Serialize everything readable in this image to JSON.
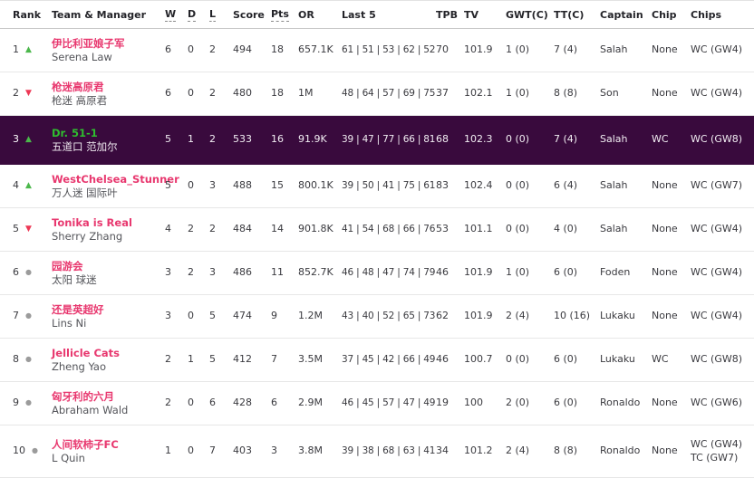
{
  "colors": {
    "highlight_bg": "#390a3d",
    "team_pink": "#e8386f",
    "highlight_team_green": "#2fbe2f",
    "up_arrow_green": "#4bb74b",
    "down_arrow_red": "#ed3855",
    "no_move_gray": "#9b9b9b"
  },
  "icons": {
    "up": "▲",
    "down": "▼",
    "same": "●"
  },
  "table": {
    "columns": [
      {
        "key": "rank",
        "label": "Rank",
        "underline": false
      },
      {
        "key": "team",
        "label": "Team & Manager",
        "underline": false
      },
      {
        "key": "w",
        "label": "W",
        "underline": true
      },
      {
        "key": "d",
        "label": "D",
        "underline": true
      },
      {
        "key": "l",
        "label": "L",
        "underline": true
      },
      {
        "key": "score",
        "label": "Score",
        "underline": false
      },
      {
        "key": "pts",
        "label": "Pts",
        "underline": true
      },
      {
        "key": "or",
        "label": "OR",
        "underline": false
      },
      {
        "key": "last5",
        "label": "Last 5",
        "underline": false
      },
      {
        "key": "tpb",
        "label": "TPB",
        "underline": false
      },
      {
        "key": "tv",
        "label": "TV",
        "underline": false
      },
      {
        "key": "gwt",
        "label": "GWT(C)",
        "underline": false
      },
      {
        "key": "tt",
        "label": "TT(C)",
        "underline": false
      },
      {
        "key": "captain",
        "label": "Captain",
        "underline": false
      },
      {
        "key": "chip",
        "label": "Chip",
        "underline": false
      },
      {
        "key": "chips",
        "label": "Chips",
        "underline": false
      }
    ],
    "rows": [
      {
        "rank": "1",
        "movement": "up",
        "team": "伊比利亚娘子军",
        "manager": "Serena Law",
        "w": "6",
        "d": "0",
        "l": "2",
        "score": "494",
        "pts": "18",
        "or": "657.1K",
        "last5": "61 | 51 | 53 | 62 | 52",
        "tpb": "70",
        "tv": "101.9",
        "gwt": "1 (0)",
        "tt": "7 (4)",
        "captain": "Salah",
        "chip": "None",
        "chips": [
          "WC (GW4)"
        ],
        "highlighted": false
      },
      {
        "rank": "2",
        "movement": "down",
        "team": "枪迷高原君",
        "manager": "枪迷 高原君",
        "w": "6",
        "d": "0",
        "l": "2",
        "score": "480",
        "pts": "18",
        "or": "1M",
        "last5": "48 | 64 | 57 | 69 | 75",
        "tpb": "37",
        "tv": "102.1",
        "gwt": "1 (0)",
        "tt": "8 (8)",
        "captain": "Son",
        "chip": "None",
        "chips": [
          "WC (GW4)"
        ],
        "highlighted": false
      },
      {
        "rank": "3",
        "movement": "up",
        "team": "Dr. 51-1",
        "manager": "五道口 范加尔",
        "w": "5",
        "d": "1",
        "l": "2",
        "score": "533",
        "pts": "16",
        "or": "91.9K",
        "last5": "39 | 47 | 77 | 66 | 81",
        "tpb": "68",
        "tv": "102.3",
        "gwt": "0 (0)",
        "tt": "7 (4)",
        "captain": "Salah",
        "chip": "WC",
        "chips": [
          "WC (GW8)"
        ],
        "highlighted": true
      },
      {
        "rank": "4",
        "movement": "up",
        "team": "WestChelsea_Stunner",
        "manager": "万人迷 国际叶",
        "w": "5",
        "d": "0",
        "l": "3",
        "score": "488",
        "pts": "15",
        "or": "800.1K",
        "last5": "39 | 50 | 41 | 75 | 61",
        "tpb": "83",
        "tv": "102.4",
        "gwt": "0 (0)",
        "tt": "6 (4)",
        "captain": "Salah",
        "chip": "None",
        "chips": [
          "WC (GW7)"
        ],
        "highlighted": false
      },
      {
        "rank": "5",
        "movement": "down",
        "team": "Tonika is Real",
        "manager": "Sherry Zhang",
        "w": "4",
        "d": "2",
        "l": "2",
        "score": "484",
        "pts": "14",
        "or": "901.8K",
        "last5": "41 | 54 | 68 | 66 | 76",
        "tpb": "53",
        "tv": "101.1",
        "gwt": "0 (0)",
        "tt": "4 (0)",
        "captain": "Salah",
        "chip": "None",
        "chips": [
          "WC (GW4)"
        ],
        "highlighted": false
      },
      {
        "rank": "6",
        "movement": "same",
        "team": "园游会",
        "manager": "太阳 球迷",
        "w": "3",
        "d": "2",
        "l": "3",
        "score": "486",
        "pts": "11",
        "or": "852.7K",
        "last5": "46 | 48 | 47 | 74 | 79",
        "tpb": "46",
        "tv": "101.9",
        "gwt": "1 (0)",
        "tt": "6 (0)",
        "captain": "Foden",
        "chip": "None",
        "chips": [
          "WC (GW4)"
        ],
        "highlighted": false
      },
      {
        "rank": "7",
        "movement": "same",
        "team": "还是英超好",
        "manager": "Lins Ni",
        "w": "3",
        "d": "0",
        "l": "5",
        "score": "474",
        "pts": "9",
        "or": "1.2M",
        "last5": "43 | 40 | 52 | 65 | 73",
        "tpb": "62",
        "tv": "101.9",
        "gwt": "2 (4)",
        "tt": "10 (16)",
        "captain": "Lukaku",
        "chip": "None",
        "chips": [
          "WC (GW4)"
        ],
        "highlighted": false
      },
      {
        "rank": "8",
        "movement": "same",
        "team": "Jellicle Cats",
        "manager": "Zheng Yao",
        "w": "2",
        "d": "1",
        "l": "5",
        "score": "412",
        "pts": "7",
        "or": "3.5M",
        "last5": "37 | 45 | 42 | 66 | 49",
        "tpb": "46",
        "tv": "100.7",
        "gwt": "0 (0)",
        "tt": "6 (0)",
        "captain": "Lukaku",
        "chip": "WC",
        "chips": [
          "WC (GW8)"
        ],
        "highlighted": false
      },
      {
        "rank": "9",
        "movement": "same",
        "team": "匈牙利的六月",
        "manager": "Abraham Wald",
        "w": "2",
        "d": "0",
        "l": "6",
        "score": "428",
        "pts": "6",
        "or": "2.9M",
        "last5": "46 | 45 | 57 | 47 | 49",
        "tpb": "19",
        "tv": "100",
        "gwt": "2 (0)",
        "tt": "6 (0)",
        "captain": "Ronaldo",
        "chip": "None",
        "chips": [
          "WC (GW6)"
        ],
        "highlighted": false
      },
      {
        "rank": "10",
        "movement": "same",
        "team": "人间软柿子FC",
        "manager": "L Quin",
        "w": "1",
        "d": "0",
        "l": "7",
        "score": "403",
        "pts": "3",
        "or": "3.8M",
        "last5": "39 | 38 | 68 | 63 | 41",
        "tpb": "34",
        "tv": "101.2",
        "gwt": "2 (4)",
        "tt": "8 (8)",
        "captain": "Ronaldo",
        "chip": "None",
        "chips": [
          "WC (GW4)",
          "TC (GW7)"
        ],
        "highlighted": false
      }
    ]
  }
}
